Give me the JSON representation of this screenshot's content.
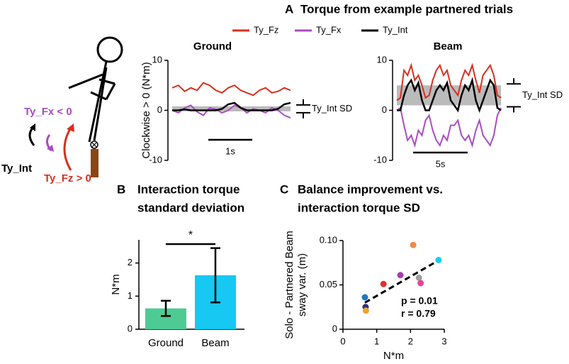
{
  "panels": [
    {
      "letter": "A",
      "title_lines": [
        "Torque from example partnered trials"
      ]
    },
    {
      "letter": "B",
      "title_lines": [
        "Interaction torque",
        "standard deviation"
      ]
    },
    {
      "letter": "C",
      "title_lines": [
        "Balance improvement vs.",
        "interaction torque SD"
      ]
    }
  ],
  "diagram": {
    "labels": [
      "Ty_Fx < 0",
      "Ty_Int",
      "Ty_Fz > 0"
    ]
  },
  "chart_data": [
    {
      "type": "line",
      "title": "Ground",
      "ylabel": "Clockwise > 0 (N*m)",
      "ylim": [
        -10,
        10
      ],
      "yticks": [
        -10,
        0,
        10
      ],
      "band": [
        -0.2,
        0.8
      ],
      "band_color": "#bbbbbb",
      "scale_bar_label": "1s",
      "annotation": "Ty_Int SD",
      "series": [
        {
          "name": "Ty_Fz",
          "color": "#d7301f",
          "values": [
            4.5,
            5,
            3.8,
            4.5,
            4,
            5.5,
            5,
            4,
            3.5,
            4.5,
            5,
            4,
            3.5,
            3,
            4,
            4.5,
            3.5,
            3.8,
            4.5,
            4
          ]
        },
        {
          "name": "Ty_Fx",
          "color": "#a84cc2",
          "values": [
            0,
            -0.5,
            0.5,
            1,
            -0.3,
            -1,
            0.5,
            0.2,
            -0.5,
            0,
            1,
            0.5,
            -0.5,
            0.3,
            0,
            -0.5,
            0.5,
            0,
            -1,
            -1.5
          ]
        },
        {
          "name": "Ty_Int",
          "color": "#000000",
          "values": [
            0,
            0,
            0.2,
            0,
            0,
            0,
            0,
            0,
            0.3,
            1.2,
            1.5,
            0.5,
            0,
            0,
            0,
            0,
            0,
            0.3,
            1.2,
            1.5
          ]
        }
      ]
    },
    {
      "type": "line",
      "title": "Beam",
      "ylim": [
        -10,
        10
      ],
      "yticks": [
        -10,
        0,
        10
      ],
      "band": [
        1,
        5
      ],
      "band_color": "#bbbbbb",
      "scale_bar_label": "5s",
      "annotation": "Ty_Int SD",
      "series": [
        {
          "name": "Ty_Fz",
          "color": "#d7301f",
          "values": [
            2,
            2.5,
            8,
            7,
            9,
            6,
            7,
            5,
            2.5,
            3,
            6,
            8,
            9,
            7,
            8,
            5,
            4,
            3,
            6,
            8,
            7,
            9,
            6,
            3.5,
            7,
            8,
            9,
            7,
            3,
            2.5
          ]
        },
        {
          "name": "Ty_Fx",
          "color": "#a84cc2",
          "values": [
            0,
            0.5,
            -3,
            -6,
            -5,
            -7,
            -4,
            -5,
            -2,
            -1,
            -4,
            -6,
            -7,
            -5,
            -6,
            -3,
            -3,
            -2,
            -5,
            -6,
            -5,
            -7,
            -4,
            -2,
            -5,
            -6,
            -7,
            -5,
            -1,
            0.5
          ]
        },
        {
          "name": "Ty_Int",
          "color": "#000000",
          "values": [
            0,
            0,
            3,
            5,
            6,
            4,
            5.5,
            2,
            0,
            0,
            2,
            4,
            5,
            4,
            5.5,
            2,
            1,
            0,
            3,
            5,
            4,
            6,
            2,
            0,
            2,
            4,
            6,
            5,
            0.5,
            0
          ]
        }
      ]
    },
    {
      "type": "bar",
      "ylabel": "N*m",
      "categories": [
        "Ground",
        "Beam"
      ],
      "values": [
        0.63,
        1.63
      ],
      "errors": [
        0.23,
        0.82
      ],
      "colors": [
        "#4ecb95",
        "#16c8f2"
      ],
      "ylim": [
        0,
        2.7
      ],
      "yticks": [
        0,
        1,
        2
      ],
      "significance": "*"
    },
    {
      "type": "scatter",
      "xlabel": "N*m",
      "ylabel_lines": [
        "Solo - Partnered Beam",
        "sway var. (m)"
      ],
      "x": [
        0.65,
        0.67,
        0.68,
        1.2,
        1.7,
        2.08,
        2.25,
        2.3,
        2.83
      ],
      "y": [
        0.036,
        0.025,
        0.021,
        0.051,
        0.061,
        0.095,
        0.058,
        0.052,
        0.078
      ],
      "colors": [
        "#1f77c4",
        "#2b2f7a",
        "#f0a030",
        "#e03030",
        "#a040b0",
        "#f08a40",
        "#a0a0a0",
        "#e8409a",
        "#20c8f0"
      ],
      "trendline": {
        "x": [
          0.65,
          2.85
        ],
        "y": [
          0.03,
          0.078
        ]
      },
      "xlim": [
        0,
        3
      ],
      "xticks": [
        0,
        1,
        2,
        3
      ],
      "ylim": [
        0,
        0.1
      ],
      "yticks": [
        0,
        0.05,
        {
          "value": 0.1,
          "label": "0.10"
        }
      ],
      "annotations": [
        "p = 0.01",
        "r = 0.79"
      ]
    }
  ]
}
